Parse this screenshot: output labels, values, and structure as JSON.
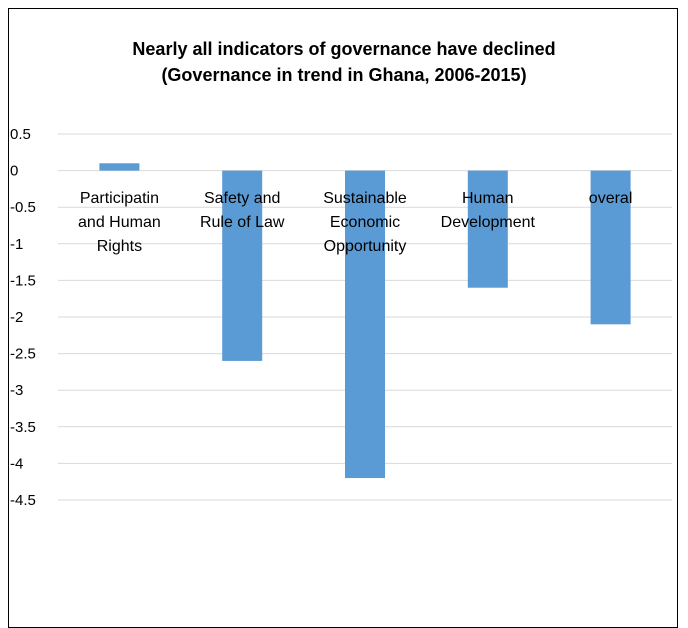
{
  "chart_data": {
    "type": "bar",
    "title": "Nearly all indicators of governance have declined",
    "subtitle": "(Governance in trend in Ghana, 2006-2015)",
    "categories": [
      "Participatin and Human Rights",
      "Safety and Rule of Law",
      "Sustainable Economic Opportunity",
      "Human Development",
      "overal"
    ],
    "category_lines": [
      [
        "Participatin",
        "and Human",
        "Rights"
      ],
      [
        "Safety and",
        "Rule of Law"
      ],
      [
        "Sustainable",
        "Economic",
        "Opportunity"
      ],
      [
        "Human",
        "Development"
      ],
      [
        "overal"
      ]
    ],
    "values": [
      0.1,
      -2.6,
      -4.2,
      -1.6,
      -2.1
    ],
    "ylim": [
      -4.5,
      0.5
    ],
    "yticks": [
      0.5,
      0,
      -0.5,
      -1,
      -1.5,
      -2,
      -2.5,
      -3,
      -3.5,
      -4,
      -4.5
    ],
    "ytick_labels": [
      "0.5",
      "0",
      "-0.5",
      "-1",
      "-1.5",
      "-2",
      "-2.5",
      "-3",
      "-3.5",
      "-4",
      "-4.5"
    ],
    "xlabel": "",
    "ylabel": "",
    "grid": true,
    "legend": "none",
    "bar_color": "#5B9BD5",
    "grid_color": "#D9D9D9"
  }
}
